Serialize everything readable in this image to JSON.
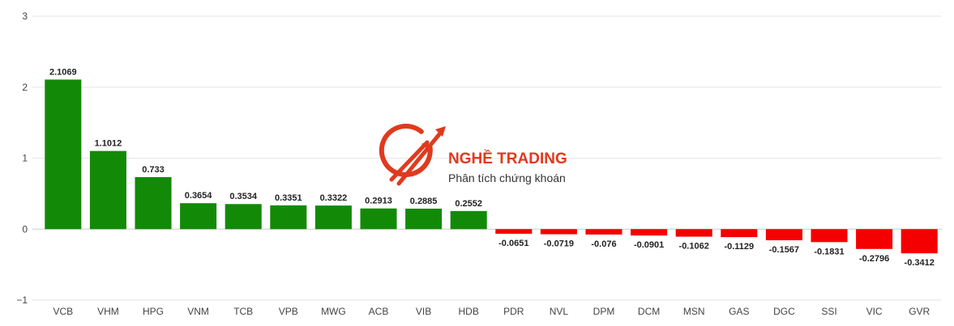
{
  "watermark": {
    "title": "NGHỀ TRADING",
    "subtitle": "Phân tích chứng khoán",
    "title_color": "#e03a1e",
    "icon": "rising-arrow-circle-logo"
  },
  "colors": {
    "positive": "#138a07",
    "negative": "#f50000"
  },
  "chart_data": {
    "type": "bar",
    "categories": [
      "VCB",
      "VHM",
      "HPG",
      "VNM",
      "TCB",
      "VPB",
      "MWG",
      "ACB",
      "VIB",
      "HDB",
      "PDR",
      "NVL",
      "DPM",
      "DCM",
      "MSN",
      "GAS",
      "DGC",
      "SSI",
      "VIC",
      "GVR"
    ],
    "values": [
      2.1069,
      1.1012,
      0.733,
      0.3654,
      0.3534,
      0.3351,
      0.3322,
      0.2913,
      0.2885,
      0.2552,
      -0.0651,
      -0.0719,
      -0.076,
      -0.0901,
      -0.1062,
      -0.1129,
      -0.1567,
      -0.1831,
      -0.2796,
      -0.3412
    ],
    "value_labels": [
      "2.1069",
      "1.1012",
      "0.733",
      "0.3654",
      "0.3534",
      "0.3351",
      "0.3322",
      "0.2913",
      "0.2885",
      "0.2552",
      "-0.0651",
      "-0.0719",
      "-0.076",
      "-0.0901",
      "-0.1062",
      "-0.1129",
      "-0.1567",
      "-0.1831",
      "-0.2796",
      "-0.3412"
    ],
    "yticks": [
      3,
      2,
      1,
      0,
      -1
    ],
    "ytick_labels": [
      "3",
      "2",
      "1",
      "0",
      "−1"
    ],
    "ylim": [
      -1,
      3
    ],
    "grid": true,
    "legend": "none",
    "title": "",
    "xlabel": "",
    "ylabel": ""
  }
}
